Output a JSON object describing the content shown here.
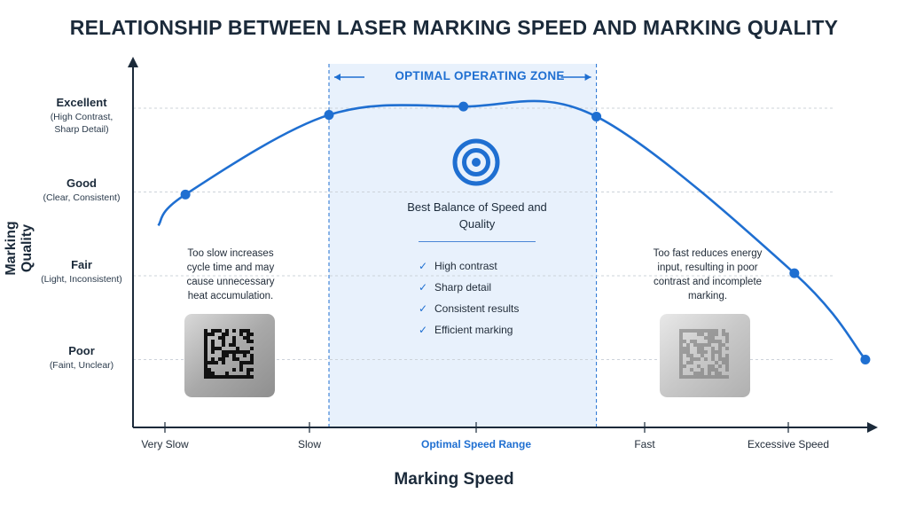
{
  "title": "RELATIONSHIP BETWEEN LASER MARKING SPEED AND MARKING QUALITY",
  "colors": {
    "accent": "#1f6fd1",
    "zone_fill": "#e8f1fc",
    "axis": "#1b2a3a"
  },
  "zone_label": "OPTIMAL OPERATING ZONE",
  "best_balance": {
    "title": "Best Balance of Speed and Quality",
    "icon": "target-icon"
  },
  "checklist": [
    "High contrast",
    "Sharp detail",
    "Consistent results",
    "Efficient marking"
  ],
  "notes": {
    "slow": "Too slow increases cycle time and may cause unnecessary heat accumulation.",
    "fast": "Too fast reduces energy input, resulting in poor contrast and incomplete marking."
  },
  "chart_data": {
    "type": "line",
    "xlabel": "Marking Speed",
    "ylabel": "Marking Quality",
    "x_categories": [
      "Very Slow",
      "Slow",
      "Optimal Speed Range",
      "Fast",
      "Excessive Speed"
    ],
    "y_categories": [
      {
        "label": "Poor",
        "sub": "(Faint, Unclear)"
      },
      {
        "label": "Fair",
        "sub": "(Light, Inconsistent)"
      },
      {
        "label": "Good",
        "sub": "(Clear, Consistent)"
      },
      {
        "label": "Excellent",
        "sub": "(High Contrast, Sharp Detail)"
      }
    ],
    "xlim": [
      0,
      4.8
    ],
    "ylim": [
      0,
      4.2
    ],
    "optimal_zone": [
      1.25,
      3.02
    ],
    "grid": "dashed horizontal at quality levels",
    "points": [
      {
        "x": 0.12,
        "y": 2.6
      },
      {
        "x": 0.3,
        "y": 2.97
      },
      {
        "x": 1.25,
        "y": 3.92
      },
      {
        "x": 2.14,
        "y": 4.02
      },
      {
        "x": 3.02,
        "y": 3.9
      },
      {
        "x": 4.33,
        "y": 2.03
      },
      {
        "x": 4.8,
        "y": 1.0
      }
    ],
    "markers": [
      {
        "x": 0.3,
        "y": 2.97
      },
      {
        "x": 1.25,
        "y": 3.92
      },
      {
        "x": 2.14,
        "y": 4.02
      },
      {
        "x": 3.02,
        "y": 3.9
      },
      {
        "x": 4.33,
        "y": 2.03
      },
      {
        "x": 4.8,
        "y": 1.0
      }
    ]
  }
}
